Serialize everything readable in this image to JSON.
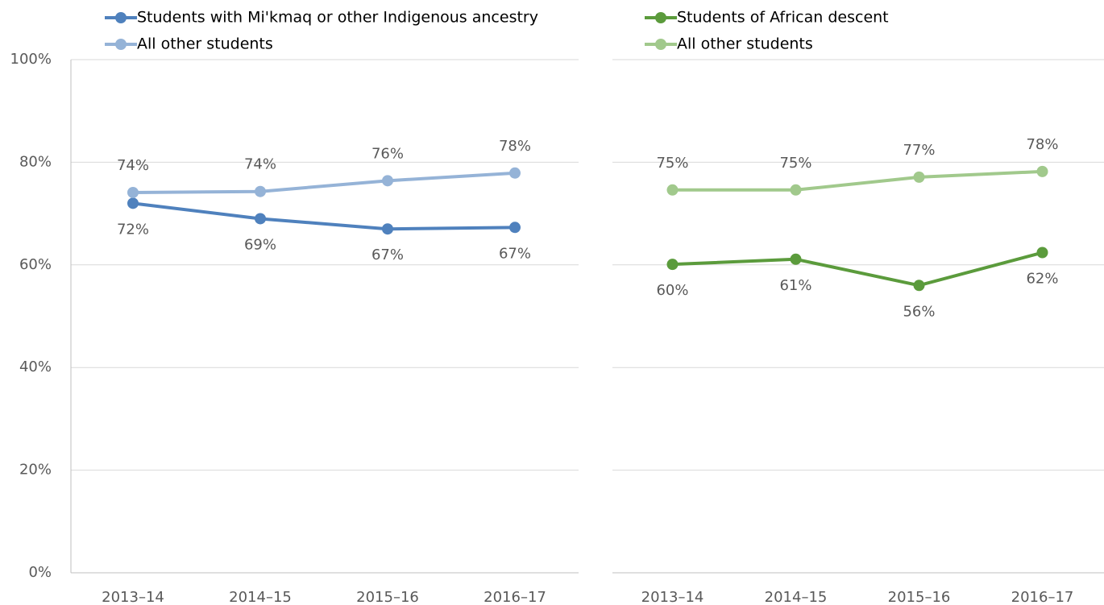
{
  "chart_data": [
    {
      "type": "line",
      "categories": [
        "2013–14",
        "2014–15",
        "2015–16",
        "2016–17"
      ],
      "series": [
        {
          "name": "Students with Mi'kmaq or other Indigenous ancestry",
          "color": "#4f81bd",
          "label_position": "below",
          "values": [
            72,
            69,
            67,
            67.3
          ],
          "value_labels": [
            "72%",
            "69%",
            "67%",
            "67%"
          ]
        },
        {
          "name": "All other students",
          "color": "#95b3d7",
          "label_position": "above",
          "values": [
            74.1,
            74.3,
            76.4,
            77.9
          ],
          "value_labels": [
            "74%",
            "74%",
            "76%",
            "78%"
          ]
        }
      ],
      "ylim": [
        0,
        100
      ],
      "yticks": [
        {
          "value": 0,
          "label": "0%"
        },
        {
          "value": 20,
          "label": "20%"
        },
        {
          "value": 40,
          "label": "40%"
        },
        {
          "value": 60,
          "label": "60%"
        },
        {
          "value": 80,
          "label": "80%"
        },
        {
          "value": 100,
          "label": "100%"
        }
      ],
      "show_ytick_labels": true,
      "grid": true
    },
    {
      "type": "line",
      "categories": [
        "2013–14",
        "2014–15",
        "2015–16",
        "2016–17"
      ],
      "series": [
        {
          "name": "Students of African descent",
          "color": "#5b9b3c",
          "label_position": "below",
          "values": [
            60.1,
            61.1,
            56,
            62.4
          ],
          "value_labels": [
            "60%",
            "61%",
            "56%",
            "62%"
          ]
        },
        {
          "name": "All other students",
          "color": "#a1c98c",
          "label_position": "above",
          "values": [
            74.6,
            74.6,
            77.1,
            78.2
          ],
          "value_labels": [
            "75%",
            "75%",
            "77%",
            "78%"
          ]
        }
      ],
      "ylim": [
        0,
        100
      ],
      "yticks": [
        0,
        20,
        40,
        60,
        80,
        100
      ],
      "show_ytick_labels": false,
      "grid": true
    }
  ]
}
